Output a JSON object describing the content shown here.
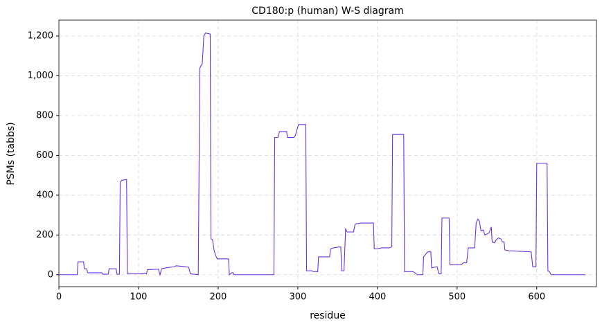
{
  "chart_data": {
    "type": "line",
    "title": "CD180:p (human) W-S diagram",
    "xlabel": "residue",
    "ylabel": "PSMs (tabbs)",
    "xlim": [
      0,
      675
    ],
    "ylim": [
      -60,
      1280
    ],
    "xticks": [
      0,
      100,
      200,
      300,
      400,
      500,
      600
    ],
    "yticks": [
      0,
      200,
      400,
      600,
      800,
      {
        "value": 1000,
        "label": "1,000"
      },
      {
        "value": 1200,
        "label": "1,200"
      }
    ],
    "grid": true,
    "series": [
      {
        "name": "CD180:p",
        "color": "#6a32e0",
        "x": [
          0,
          23,
          24,
          31,
          32,
          35,
          36,
          54,
          55,
          62,
          63,
          72,
          73,
          76,
          77,
          79,
          85,
          86,
          100,
          107,
          110,
          111,
          125,
          127,
          129,
          140,
          145,
          147,
          155,
          163,
          165,
          175,
          177,
          180,
          182,
          184,
          190,
          191,
          193,
          195,
          197,
          199,
          213,
          214,
          217,
          219,
          220,
          270,
          271,
          275,
          277,
          286,
          287,
          295,
          297,
          299,
          301,
          310,
          311,
          318,
          320,
          325,
          326,
          340,
          341,
          345,
          352,
          354,
          355,
          358,
          360,
          362,
          370,
          372,
          380,
          395,
          396,
          400,
          405,
          415,
          418,
          419,
          433,
          434,
          445,
          447,
          450,
          457,
          458,
          460,
          463,
          467,
          468,
          475,
          477,
          480,
          481,
          490,
          491,
          505,
          508,
          512,
          514,
          522,
          524,
          526,
          528,
          530,
          533,
          535,
          540,
          543,
          544,
          547,
          549,
          552,
          555,
          557,
          559,
          560,
          565,
          570,
          593,
          595,
          599,
          600,
          613,
          614,
          616,
          618,
          661
        ],
        "values": [
          0,
          0,
          65,
          65,
          30,
          30,
          10,
          10,
          3,
          3,
          30,
          30,
          3,
          3,
          465,
          475,
          478,
          5,
          5,
          8,
          5,
          25,
          28,
          0,
          30,
          38,
          40,
          45,
          42,
          38,
          5,
          0,
          1040,
          1060,
          1200,
          1215,
          1210,
          180,
          175,
          120,
          95,
          80,
          80,
          0,
          10,
          10,
          0,
          0,
          690,
          690,
          720,
          720,
          690,
          690,
          700,
          730,
          755,
          755,
          20,
          20,
          15,
          15,
          90,
          90,
          130,
          135,
          140,
          140,
          20,
          20,
          230,
          215,
          215,
          255,
          260,
          260,
          130,
          130,
          135,
          135,
          140,
          705,
          705,
          15,
          15,
          10,
          0,
          0,
          90,
          100,
          115,
          115,
          35,
          40,
          5,
          5,
          285,
          285,
          50,
          50,
          60,
          60,
          135,
          135,
          260,
          280,
          270,
          220,
          225,
          200,
          210,
          240,
          165,
          160,
          175,
          185,
          180,
          165,
          165,
          125,
          120,
          120,
          115,
          40,
          40,
          560,
          560,
          20,
          15,
          0,
          0
        ]
      }
    ]
  }
}
